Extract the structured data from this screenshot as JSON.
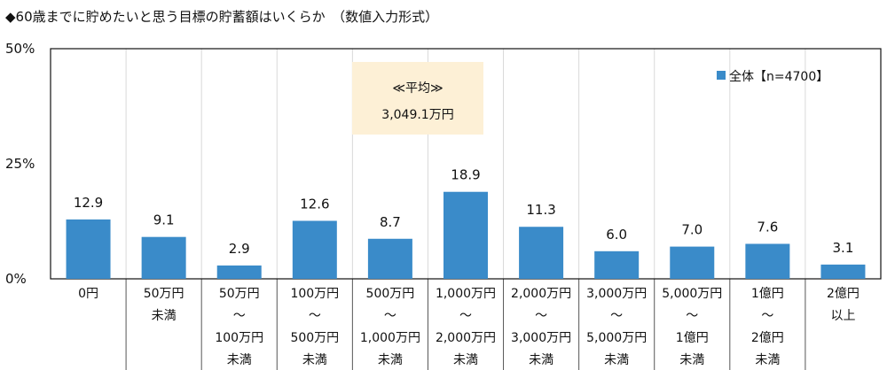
{
  "title": "◆60歳までに貯めたいと思う目標の貯蓄額はいくらか　（数値入力形式）",
  "chart_data": {
    "type": "bar",
    "title": "◆60歳までに貯めたいと思う目標の貯蓄額はいくらか　（数値入力形式）",
    "categories": [
      [
        "0円"
      ],
      [
        "50万円",
        "未満"
      ],
      [
        "50万円",
        "～",
        "100万円",
        "未満"
      ],
      [
        "100万円",
        "～",
        "500万円",
        "未満"
      ],
      [
        "500万円",
        "～",
        "1,000万円",
        "未満"
      ],
      [
        "1,000万円",
        "～",
        "2,000万円",
        "未満"
      ],
      [
        "2,000万円",
        "～",
        "3,000万円",
        "未満"
      ],
      [
        "3,000万円",
        "～",
        "5,000万円",
        "未満"
      ],
      [
        "5,000万円",
        "～",
        "1億円",
        "未満"
      ],
      [
        "1億円",
        "～",
        "2億円",
        "未満"
      ],
      [
        "2億円",
        "以上"
      ]
    ],
    "series": [
      {
        "name": "全体【n=4700】",
        "values": [
          12.9,
          9.1,
          2.9,
          12.6,
          8.7,
          18.9,
          11.3,
          6.0,
          7.0,
          7.6,
          3.1
        ],
        "color": "#3a8bc9"
      }
    ],
    "ylim": [
      0,
      50
    ],
    "yticks": [
      {
        "v": 0,
        "label": "0%"
      },
      {
        "v": 25,
        "label": "25%"
      },
      {
        "v": 50,
        "label": "50%"
      }
    ],
    "legend": {
      "label": "全体【n=4700】",
      "placement": "top-right"
    },
    "annotation": {
      "line1": "≪平均≫",
      "line2": "3,049.1万円",
      "bg": "#fdf0d6"
    },
    "grid": "vertical category separators"
  }
}
